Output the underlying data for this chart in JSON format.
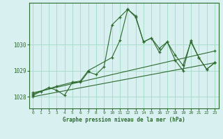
{
  "title": "Graphe pression niveau de la mer (hPa)",
  "bg_color": "#d8f0f0",
  "grid_color": "#aaddcc",
  "line_color": "#2d6a2d",
  "xlim": [
    -0.5,
    23.5
  ],
  "ylim": [
    1027.55,
    1031.6
  ],
  "yticks": [
    1028,
    1029,
    1030
  ],
  "xticks": [
    0,
    1,
    2,
    3,
    4,
    5,
    6,
    7,
    8,
    9,
    10,
    11,
    12,
    13,
    14,
    15,
    16,
    17,
    18,
    19,
    20,
    21,
    22,
    23
  ],
  "line1_x": [
    0,
    1,
    2,
    3,
    4,
    5,
    6,
    7,
    8,
    9,
    10,
    11,
    12,
    13,
    14,
    15,
    16,
    17,
    18,
    19,
    20,
    21,
    22,
    23
  ],
  "line1_y": [
    1028.05,
    1028.2,
    1028.35,
    1028.25,
    1028.05,
    1028.55,
    1028.55,
    1028.95,
    1028.85,
    1029.15,
    1030.75,
    1031.05,
    1031.35,
    1031.1,
    1030.1,
    1030.25,
    1029.85,
    1030.1,
    1029.6,
    1029.2,
    1030.1,
    1029.5,
    1029.05,
    1029.3
  ],
  "line2_x": [
    0,
    3,
    5,
    6,
    7,
    10,
    11,
    12,
    13,
    14,
    15,
    16,
    17,
    18,
    19,
    20,
    21,
    22,
    23
  ],
  "line2_y": [
    1028.1,
    1028.4,
    1028.55,
    1028.6,
    1029.0,
    1029.5,
    1030.15,
    1031.35,
    1031.05,
    1030.1,
    1030.25,
    1029.7,
    1030.1,
    1029.4,
    1029.0,
    1030.15,
    1029.5,
    1029.05,
    1029.3
  ],
  "line3_x": [
    0,
    23
  ],
  "line3_y": [
    1028.0,
    1029.3
  ],
  "line4_x": [
    0,
    23
  ],
  "line4_y": [
    1028.15,
    1029.75
  ]
}
